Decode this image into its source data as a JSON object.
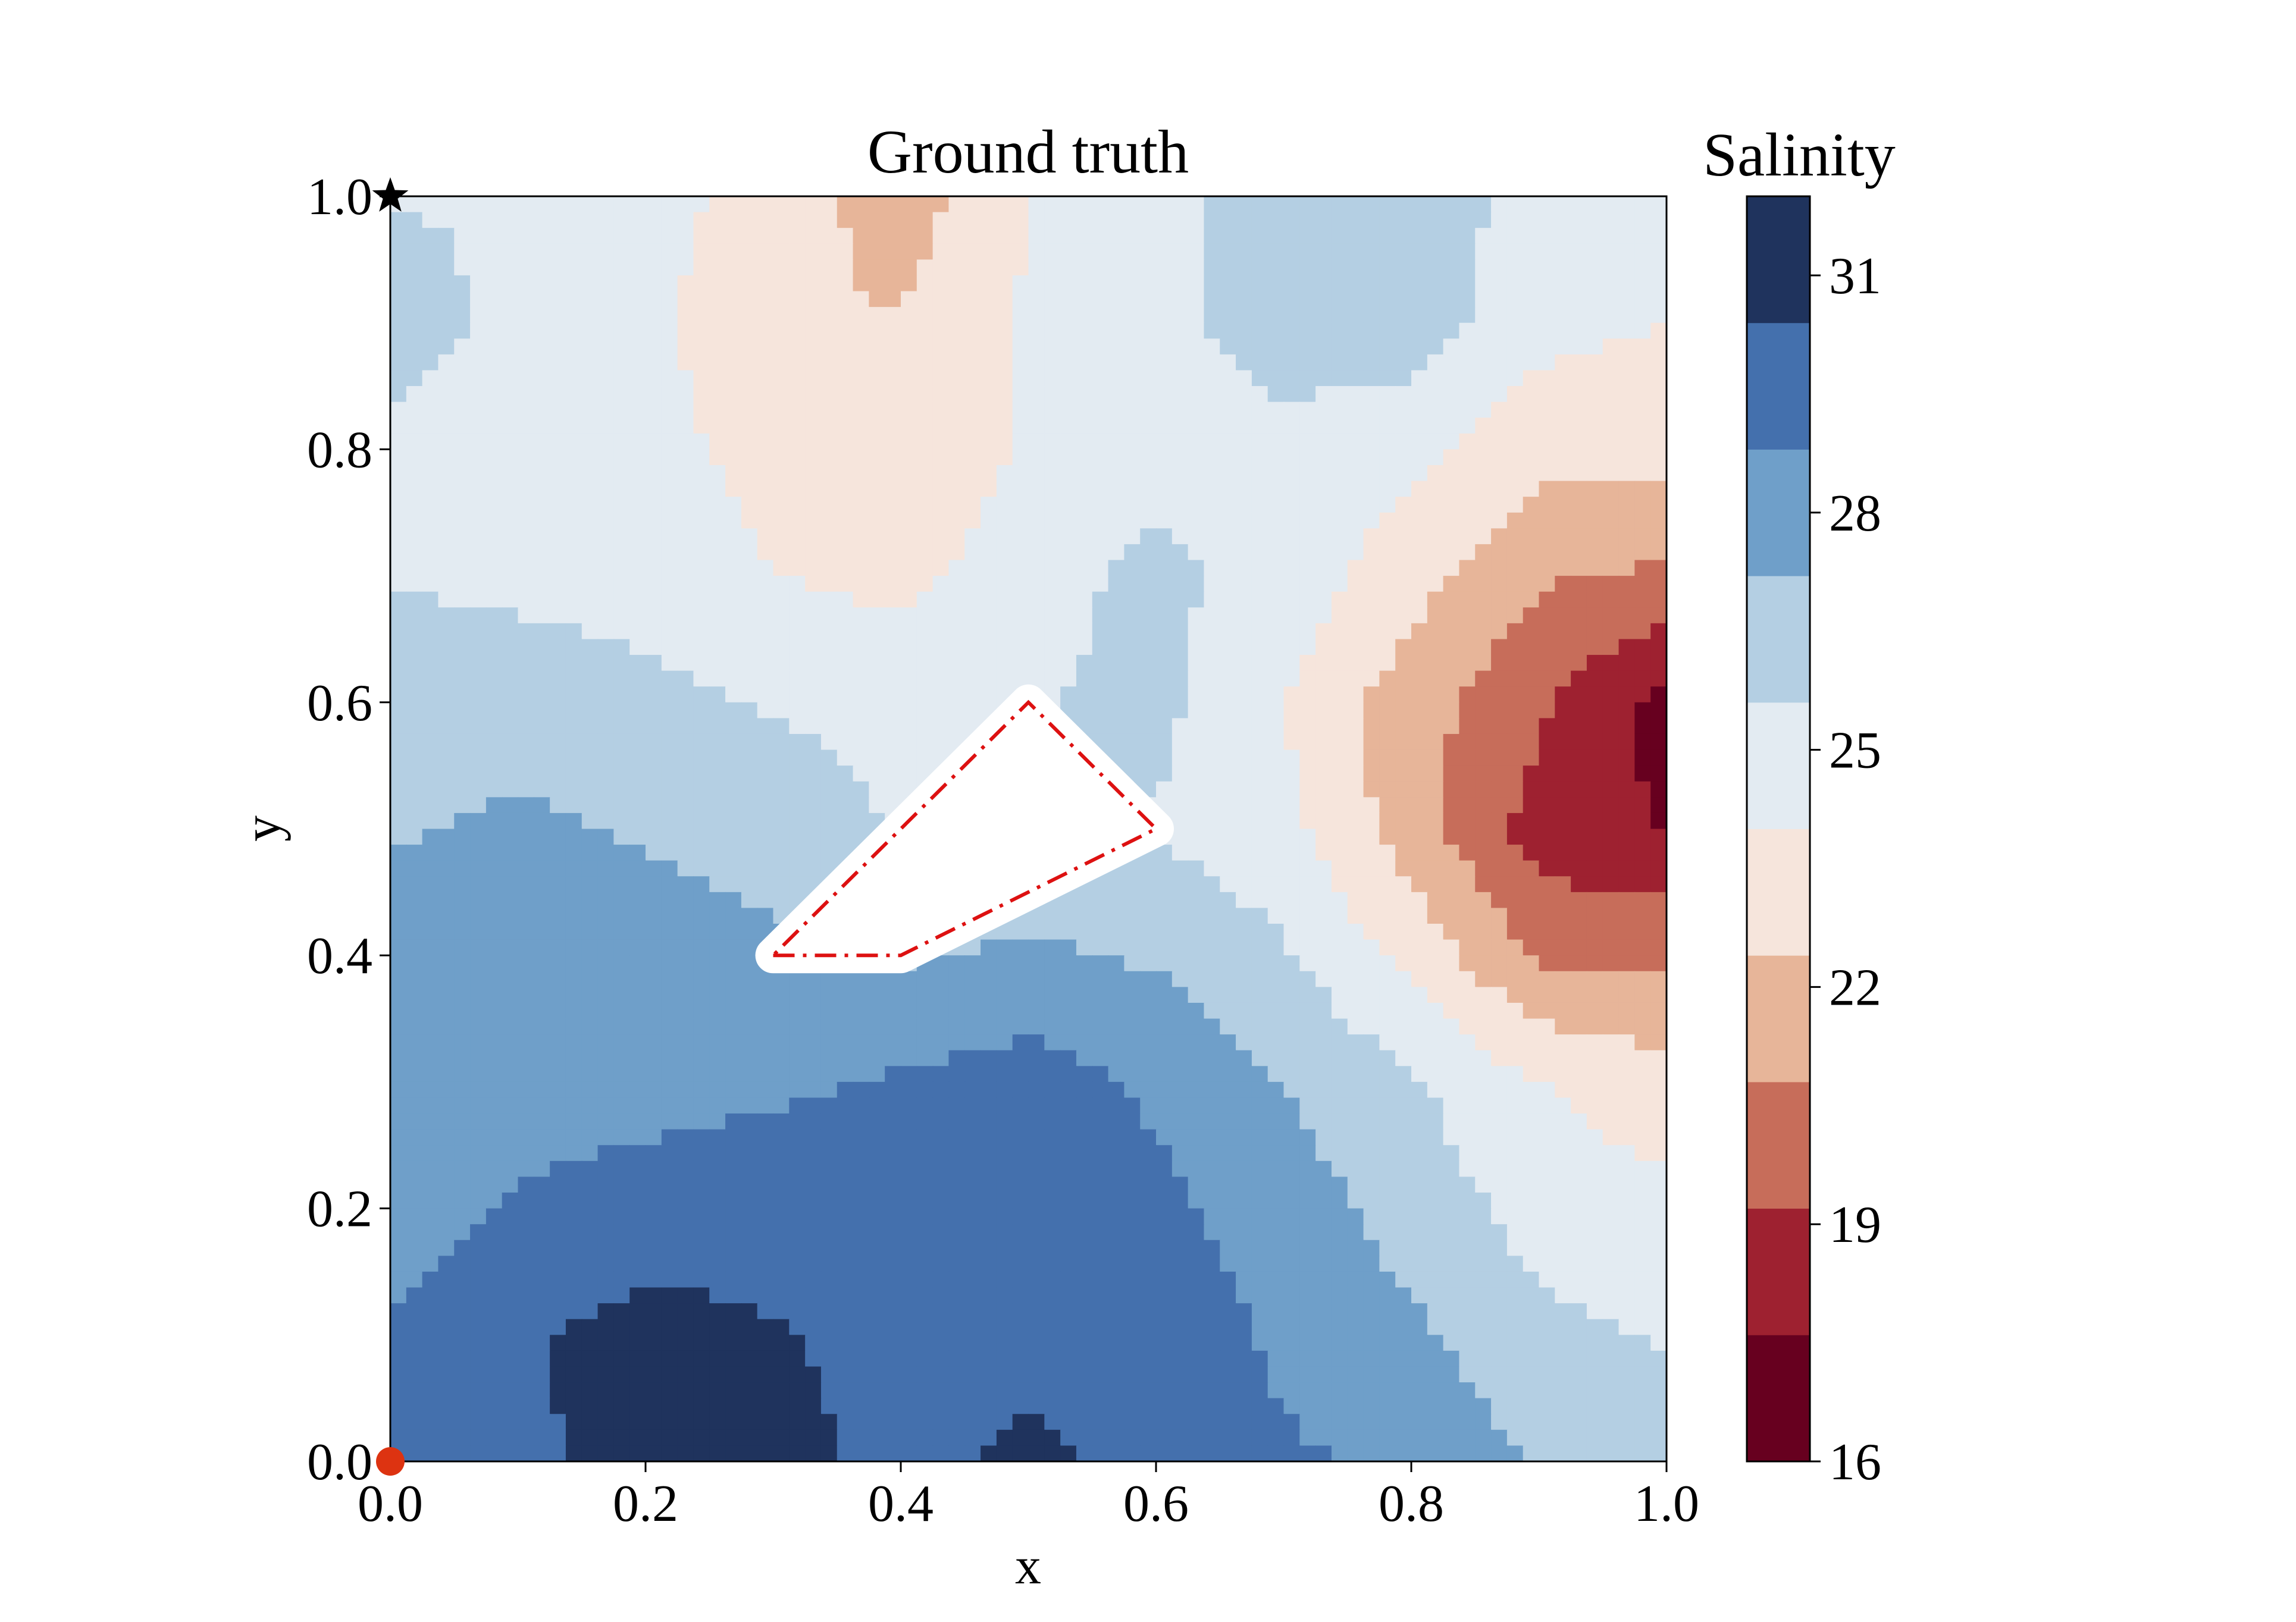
{
  "chart_data": {
    "type": "heatmap",
    "title": "Ground truth",
    "xlabel": "x",
    "ylabel": "y",
    "xlim": [
      0.0,
      1.0
    ],
    "ylim": [
      0.0,
      1.0
    ],
    "xticks": [
      "0.0",
      "0.2",
      "0.4",
      "0.6",
      "0.8",
      "1.0"
    ],
    "yticks": [
      "0.0",
      "0.2",
      "0.4",
      "0.6",
      "0.8",
      "1.0"
    ],
    "grid": false,
    "colorbar": {
      "label": "Salinity",
      "range": [
        16,
        32
      ],
      "ticks": [
        "16",
        "19",
        "22",
        "25",
        "28",
        "31"
      ],
      "levels": [
        16,
        17.6,
        19.2,
        20.8,
        22.4,
        24.0,
        25.6,
        27.2,
        28.8,
        30.4,
        32
      ],
      "colors": [
        "#67001f",
        "#9e2130",
        "#c76d5a",
        "#e7b599",
        "#f6e5dc",
        "#e3ebf2",
        "#b4cfe3",
        "#6f9fc9",
        "#4470ad",
        "#1f335d"
      ]
    },
    "field_samples": {
      "description": "salinity levels on a regular grid, rows from y=0 (bottom) to y=1 (top), columns from x=0 to x=1",
      "x": [
        0.0,
        0.1,
        0.2,
        0.3,
        0.4,
        0.5,
        0.6,
        0.7,
        0.8,
        0.9,
        1.0
      ],
      "y": [
        0.0,
        0.1,
        0.2,
        0.3,
        0.4,
        0.5,
        0.6,
        0.7,
        0.8,
        0.9,
        1.0
      ],
      "z": [
        [
          29.5,
          30.0,
          31.2,
          31.0,
          29.8,
          30.8,
          29.8,
          29.0,
          28.5,
          27.0,
          26.5
        ],
        [
          29.0,
          30.2,
          31.0,
          30.5,
          29.9,
          29.8,
          29.8,
          28.5,
          27.5,
          26.0,
          25.5
        ],
        [
          28.0,
          29.0,
          29.5,
          29.8,
          30.0,
          30.2,
          29.2,
          28.0,
          26.5,
          25.0,
          24.5
        ],
        [
          28.0,
          28.0,
          28.2,
          28.5,
          29.0,
          29.5,
          28.5,
          27.2,
          25.8,
          24.0,
          23.0
        ],
        [
          28.0,
          28.0,
          28.0,
          27.5,
          27.0,
          27.5,
          27.0,
          25.8,
          23.5,
          20.5,
          20.5
        ],
        [
          27.0,
          27.5,
          27.0,
          26.5,
          25.5,
          25.5,
          25.5,
          24.5,
          21.5,
          18.5,
          17.5
        ],
        [
          26.5,
          26.5,
          26.0,
          25.5,
          25.0,
          25.5,
          26.0,
          24.0,
          21.5,
          19.5,
          17.0
        ],
        [
          25.5,
          25.2,
          25.0,
          24.0,
          23.5,
          25.0,
          26.0,
          25.0,
          23.0,
          21.0,
          20.5
        ],
        [
          25.0,
          25.0,
          24.5,
          23.5,
          22.5,
          24.2,
          25.0,
          25.0,
          24.5,
          23.0,
          23.0
        ],
        [
          26.5,
          25.0,
          24.5,
          22.5,
          22.5,
          24.2,
          25.0,
          26.5,
          26.5,
          24.5,
          24.0
        ],
        [
          25.5,
          25.5,
          24.5,
          23.5,
          21.5,
          24.0,
          25.0,
          26.5,
          26.5,
          25.0,
          25.0
        ]
      ]
    },
    "obstacle_polygon": {
      "style": "red dash-dot outline, white interior",
      "color": "#dd1111",
      "vertices": [
        [
          0.3,
          0.4
        ],
        [
          0.4,
          0.4
        ],
        [
          0.6,
          0.5
        ],
        [
          0.5,
          0.6
        ],
        [
          0.3,
          0.4
        ]
      ]
    },
    "markers": [
      {
        "label": "start",
        "shape": "circle",
        "color": "#dd3311",
        "x": 0.0,
        "y": 0.0
      },
      {
        "label": "goal",
        "shape": "star",
        "color": "#000000",
        "x": 0.0,
        "y": 1.0
      }
    ]
  }
}
